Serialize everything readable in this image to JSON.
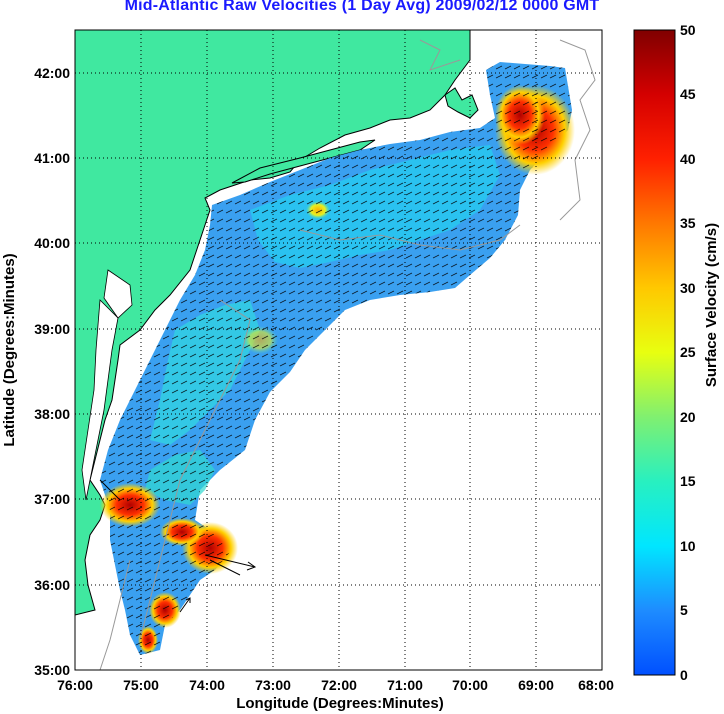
{
  "title": "Mid-Atlantic Raw Velocities (1 Day Avg) 2009/02/12 0000 GMT",
  "xlabel": "Longitude (Degrees:Minutes)",
  "ylabel": "Latitude (Degrees:Minutes)",
  "colorbar_label": "Surface Velocity (cm/s)",
  "x_ticks": [
    "76:00",
    "75:00",
    "74:00",
    "73:00",
    "72:00",
    "71:00",
    "70:00",
    "69:00",
    "68:00"
  ],
  "y_ticks": [
    "42:00",
    "41:00",
    "40:00",
    "39:00",
    "38:00",
    "37:00",
    "36:00",
    "35:00"
  ],
  "colorbar_ticks": [
    "50",
    "45",
    "40",
    "35",
    "30",
    "25",
    "20",
    "15",
    "10",
    "5",
    "0"
  ],
  "colors": {
    "land": "#40e8a0",
    "title": "#1a1aff",
    "ocean_low": "#3aa0f0",
    "ocean_mid": "#2ecff0",
    "high": "#c00000"
  },
  "chart_data": {
    "type": "heatmap",
    "title": "Mid-Atlantic Raw Velocities (1 Day Avg) 2009/02/12 0000 GMT",
    "xlabel": "Longitude (Degrees:Minutes)",
    "ylabel": "Latitude (Degrees:Minutes)",
    "xlim": [
      "76:00 W",
      "68:00 W"
    ],
    "ylim": [
      "35:00 N",
      "42:30 N"
    ],
    "colorbar": {
      "label": "Surface Velocity (cm/s)",
      "range": [
        0,
        50
      ]
    },
    "grid": true,
    "hotspots_cm_s": [
      {
        "lat": 41.2,
        "lon": -69.0,
        "value": 50
      },
      {
        "lat": 36.9,
        "lon": -75.1,
        "value": 48
      },
      {
        "lat": 36.5,
        "lon": -74.2,
        "value": 50
      },
      {
        "lat": 35.5,
        "lon": -74.6,
        "value": 45
      }
    ]
  }
}
